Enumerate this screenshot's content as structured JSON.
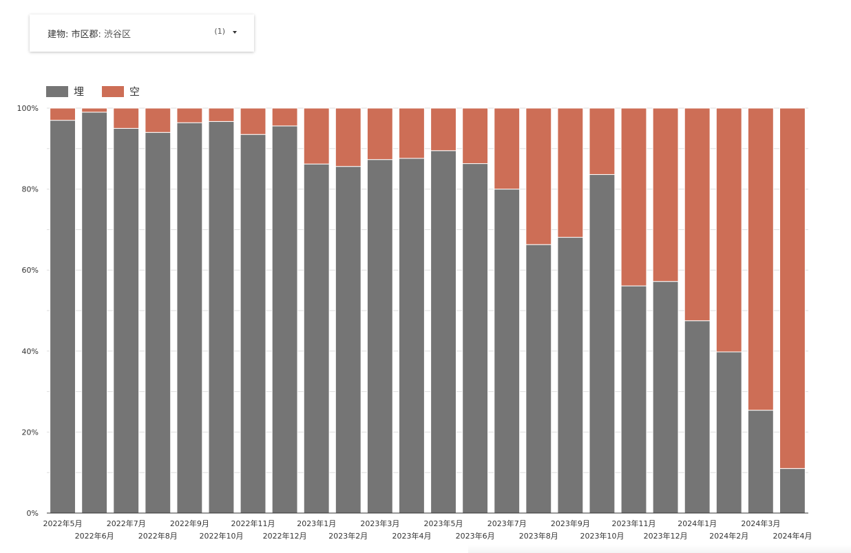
{
  "filter": {
    "label": "建物: 市区郡",
    "value": ": 渋谷区",
    "count": "(1)",
    "caret_icon": "chevron-down-icon"
  },
  "colors": {
    "filled": "#757575",
    "vacant": "#cd6e56",
    "grid": "#dddddd",
    "axis": "#333333"
  },
  "chart_data": {
    "type": "bar",
    "stacked": true,
    "normalized": true,
    "categories": [
      "2022年5月",
      "2022年6月",
      "2022年7月",
      "2022年8月",
      "2022年9月",
      "2022年10月",
      "2022年11月",
      "2022年12月",
      "2023年1月",
      "2023年2月",
      "2023年3月",
      "2023年4月",
      "2023年5月",
      "2023年6月",
      "2023年7月",
      "2023年8月",
      "2023年9月",
      "2023年10月",
      "2023年11月",
      "2023年12月",
      "2024年1月",
      "2024年2月",
      "2024年3月",
      "2024年4月"
    ],
    "series": [
      {
        "name": "埋",
        "color": "#757575",
        "values": [
          97,
          99,
          95,
          94,
          96.4,
          96.7,
          93.5,
          95.6,
          86.2,
          85.6,
          87.3,
          87.6,
          89.5,
          86.3,
          80,
          66.3,
          68.1,
          83.6,
          56.1,
          57.2,
          47.5,
          39.8,
          25.4,
          11
        ]
      },
      {
        "name": "空",
        "color": "#cd6e56",
        "values": [
          3,
          1,
          5,
          6,
          3.6,
          3.3,
          6.5,
          4.4,
          13.8,
          14.4,
          12.7,
          12.4,
          10.5,
          13.7,
          20,
          33.7,
          31.9,
          16.4,
          43.9,
          42.8,
          52.5,
          60.2,
          74.6,
          89
        ]
      }
    ],
    "y_ticks": [
      "0%",
      "20%",
      "40%",
      "60%",
      "80%",
      "100%"
    ],
    "ylim": [
      0,
      100
    ],
    "legend_position": "top-left",
    "grid": true
  }
}
